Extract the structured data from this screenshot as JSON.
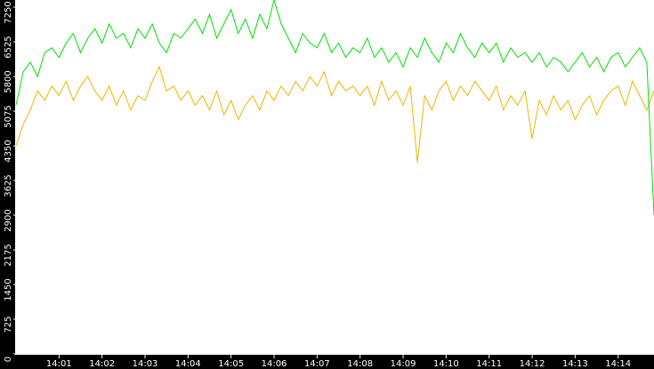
{
  "chart_data": {
    "type": "line",
    "categories": [
      null,
      null,
      null,
      null,
      null,
      null,
      "14:01",
      null,
      null,
      null,
      null,
      null,
      "14:02",
      null,
      null,
      null,
      null,
      null,
      "14:03",
      null,
      null,
      null,
      null,
      null,
      "14:04",
      null,
      null,
      null,
      null,
      null,
      "14:05",
      null,
      null,
      null,
      null,
      null,
      "14:06",
      null,
      null,
      null,
      null,
      null,
      "14:07",
      null,
      null,
      null,
      null,
      null,
      "14:08",
      null,
      null,
      null,
      null,
      null,
      "14:09",
      null,
      null,
      null,
      null,
      null,
      "14:10",
      null,
      null,
      null,
      null,
      null,
      "14:11",
      null,
      null,
      null,
      null,
      null,
      "14:12",
      null,
      null,
      null,
      null,
      null,
      "14:13",
      null,
      null,
      null,
      null,
      null,
      "14:14",
      null,
      null,
      null,
      null,
      null
    ],
    "series": [
      {
        "color": "#00e000",
        "values": [
          5200,
          5900,
          6100,
          5800,
          6300,
          6400,
          6200,
          6500,
          6700,
          6300,
          6600,
          6800,
          6500,
          6900,
          6600,
          6700,
          6400,
          6800,
          6600,
          6900,
          6500,
          6300,
          6700,
          6600,
          6800,
          7000,
          6700,
          7100,
          6600,
          6900,
          7200,
          6700,
          7000,
          6600,
          7100,
          6800,
          7400,
          6900,
          6600,
          6300,
          6700,
          6500,
          6400,
          6700,
          6300,
          6500,
          6200,
          6400,
          6300,
          6600,
          6200,
          6400,
          6100,
          6300,
          6000,
          6400,
          6200,
          6600,
          6300,
          6100,
          6500,
          6300,
          6700,
          6400,
          6200,
          6500,
          6300,
          6500,
          6100,
          6400,
          6200,
          6300,
          6100,
          6300,
          6000,
          6200,
          6100,
          5900,
          6100,
          6300,
          6000,
          6200,
          5900,
          6200,
          6300,
          6000,
          6200,
          6400,
          6100,
          2900
        ]
      },
      {
        "color": "#f0b400",
        "values": [
          4350,
          4800,
          5100,
          5500,
          5300,
          5600,
          5400,
          5700,
          5300,
          5600,
          5800,
          5500,
          5300,
          5600,
          5200,
          5500,
          5100,
          5400,
          5300,
          5700,
          6000,
          5500,
          5600,
          5300,
          5500,
          5200,
          5400,
          5100,
          5500,
          5000,
          5300,
          4900,
          5200,
          5400,
          5100,
          5500,
          5300,
          5600,
          5400,
          5700,
          5500,
          5800,
          5600,
          5900,
          5400,
          5700,
          5500,
          5600,
          5400,
          5600,
          5200,
          5700,
          5300,
          5500,
          5200,
          5600,
          4000,
          5400,
          5100,
          5500,
          5700,
          5300,
          5600,
          5400,
          5700,
          5500,
          5300,
          5600,
          5100,
          5400,
          5200,
          5500,
          4500,
          5300,
          5000,
          5400,
          5100,
          5300,
          4900,
          5200,
          5400,
          5000,
          5300,
          5500,
          5600,
          5200,
          5700,
          5400,
          5100,
          5500
        ]
      }
    ],
    "ylim": [
      0,
      7400
    ],
    "yticks": [
      0,
      725,
      1450,
      2175,
      2900,
      3625,
      4350,
      5075,
      5800,
      6525,
      7250
    ]
  }
}
